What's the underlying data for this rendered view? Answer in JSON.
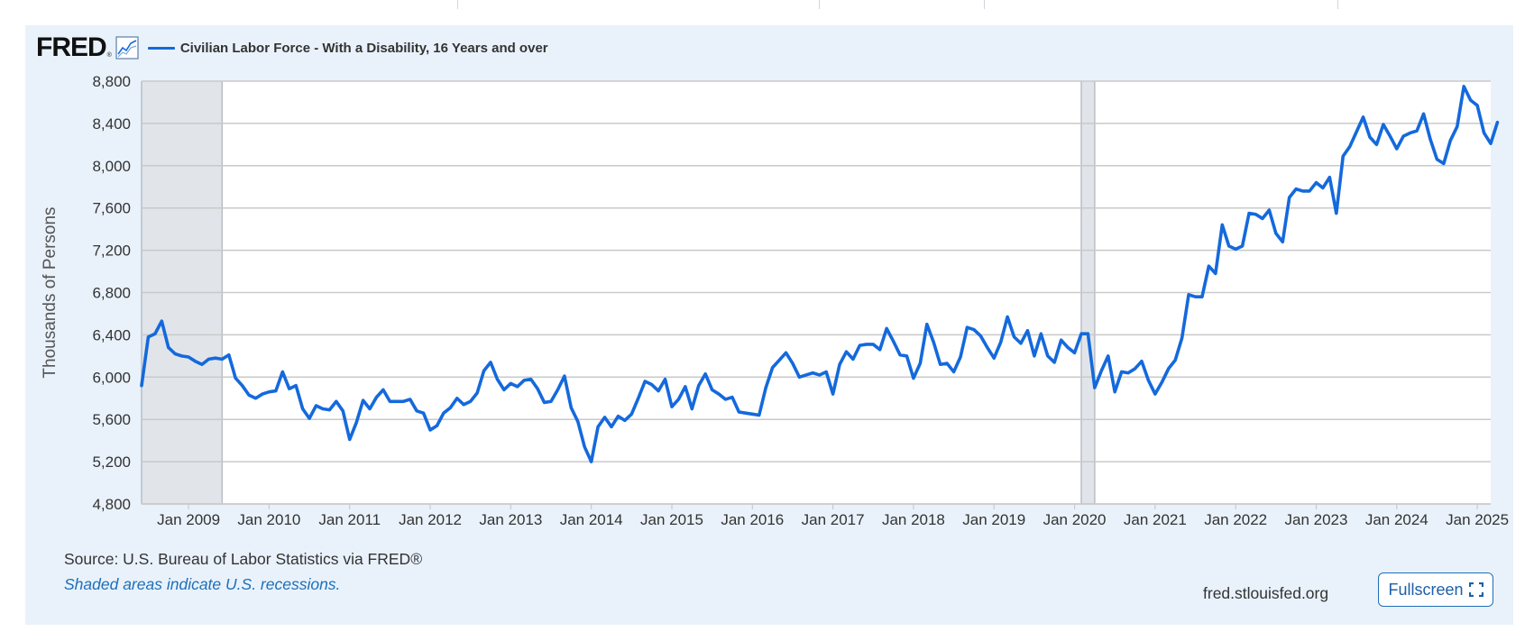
{
  "header": {
    "logo_text": "FRED",
    "logo_reg": "®",
    "graph_icon": "line-graph-icon",
    "series_color": "#1469dc"
  },
  "footer": {
    "source": "Source: U.S. Bureau of Labor Statistics via FRED®",
    "shading_note": "Shaded areas indicate U.S. recessions.",
    "site": "fred.stlouisfed.org",
    "fullscreen_label": "Fullscreen",
    "fullscreen_icon": "expand-icon"
  },
  "chart_data": {
    "type": "line",
    "title": "",
    "ylabel": "Thousands of Persons",
    "xlabel": "",
    "ylim": [
      4800,
      8800
    ],
    "yticks": [
      "4,800",
      "5,200",
      "5,600",
      "6,000",
      "6,400",
      "6,800",
      "7,200",
      "7,600",
      "8,000",
      "8,400",
      "8,800"
    ],
    "xticks": [
      "Jan 2009",
      "Jan 2010",
      "Jan 2011",
      "Jan 2012",
      "Jan 2013",
      "Jan 2014",
      "Jan 2015",
      "Jan 2016",
      "Jan 2017",
      "Jan 2018",
      "Jan 2019",
      "Jan 2020",
      "Jan 2021",
      "Jan 2022",
      "Jan 2023",
      "Jan 2024",
      "Jan 2025"
    ],
    "x_start": "2008-06",
    "x_end": "2025-03",
    "recessions": [
      {
        "start": "2008-06",
        "end": "2009-06"
      },
      {
        "start": "2020-02",
        "end": "2020-04"
      }
    ],
    "grid": true,
    "series": [
      {
        "name": "Civilian Labor Force - With a Disability, 16 Years and over",
        "color": "#1469dc",
        "values": [
          5920,
          6380,
          6410,
          6530,
          6280,
          6220,
          6200,
          6190,
          6150,
          6120,
          6170,
          6180,
          6170,
          6210,
          5990,
          5920,
          5830,
          5800,
          5840,
          5860,
          5870,
          6050,
          5890,
          5920,
          5700,
          5610,
          5730,
          5700,
          5690,
          5770,
          5680,
          5410,
          5570,
          5780,
          5700,
          5810,
          5880,
          5770,
          5770,
          5770,
          5790,
          5680,
          5660,
          5500,
          5540,
          5660,
          5710,
          5800,
          5740,
          5770,
          5850,
          6060,
          6140,
          5980,
          5880,
          5940,
          5910,
          5970,
          5980,
          5890,
          5760,
          5770,
          5880,
          6010,
          5710,
          5580,
          5340,
          5200,
          5530,
          5620,
          5530,
          5630,
          5590,
          5650,
          5800,
          5960,
          5930,
          5870,
          5980,
          5720,
          5790,
          5910,
          5700,
          5920,
          6030,
          5880,
          5840,
          5790,
          5810,
          5670,
          5660,
          5650,
          5640,
          5900,
          6090,
          6160,
          6230,
          6130,
          6000,
          6020,
          6040,
          6020,
          6050,
          5840,
          6120,
          6240,
          6170,
          6300,
          6310,
          6310,
          6260,
          6460,
          6340,
          6210,
          6200,
          5990,
          6130,
          6500,
          6330,
          6120,
          6130,
          6050,
          6190,
          6470,
          6450,
          6390,
          6280,
          6180,
          6330,
          6570,
          6380,
          6320,
          6440,
          6200,
          6410,
          6200,
          6140,
          6350,
          6280,
          6230,
          6410,
          6410,
          5900,
          6060,
          6200,
          5860,
          6050,
          6040,
          6080,
          6150,
          5970,
          5840,
          5950,
          6080,
          6160,
          6370,
          6780,
          6760,
          6760,
          7050,
          6980,
          7440,
          7240,
          7210,
          7240,
          7550,
          7540,
          7500,
          7580,
          7360,
          7280,
          7700,
          7780,
          7760,
          7760,
          7840,
          7790,
          7890,
          7550,
          8090,
          8180,
          8320,
          8460,
          8270,
          8200,
          8390,
          8280,
          8160,
          8280,
          8310,
          8330,
          8490,
          8250,
          8060,
          8020,
          8240,
          8370,
          8750,
          8620,
          8570,
          8310,
          8210,
          8410
        ]
      }
    ]
  }
}
